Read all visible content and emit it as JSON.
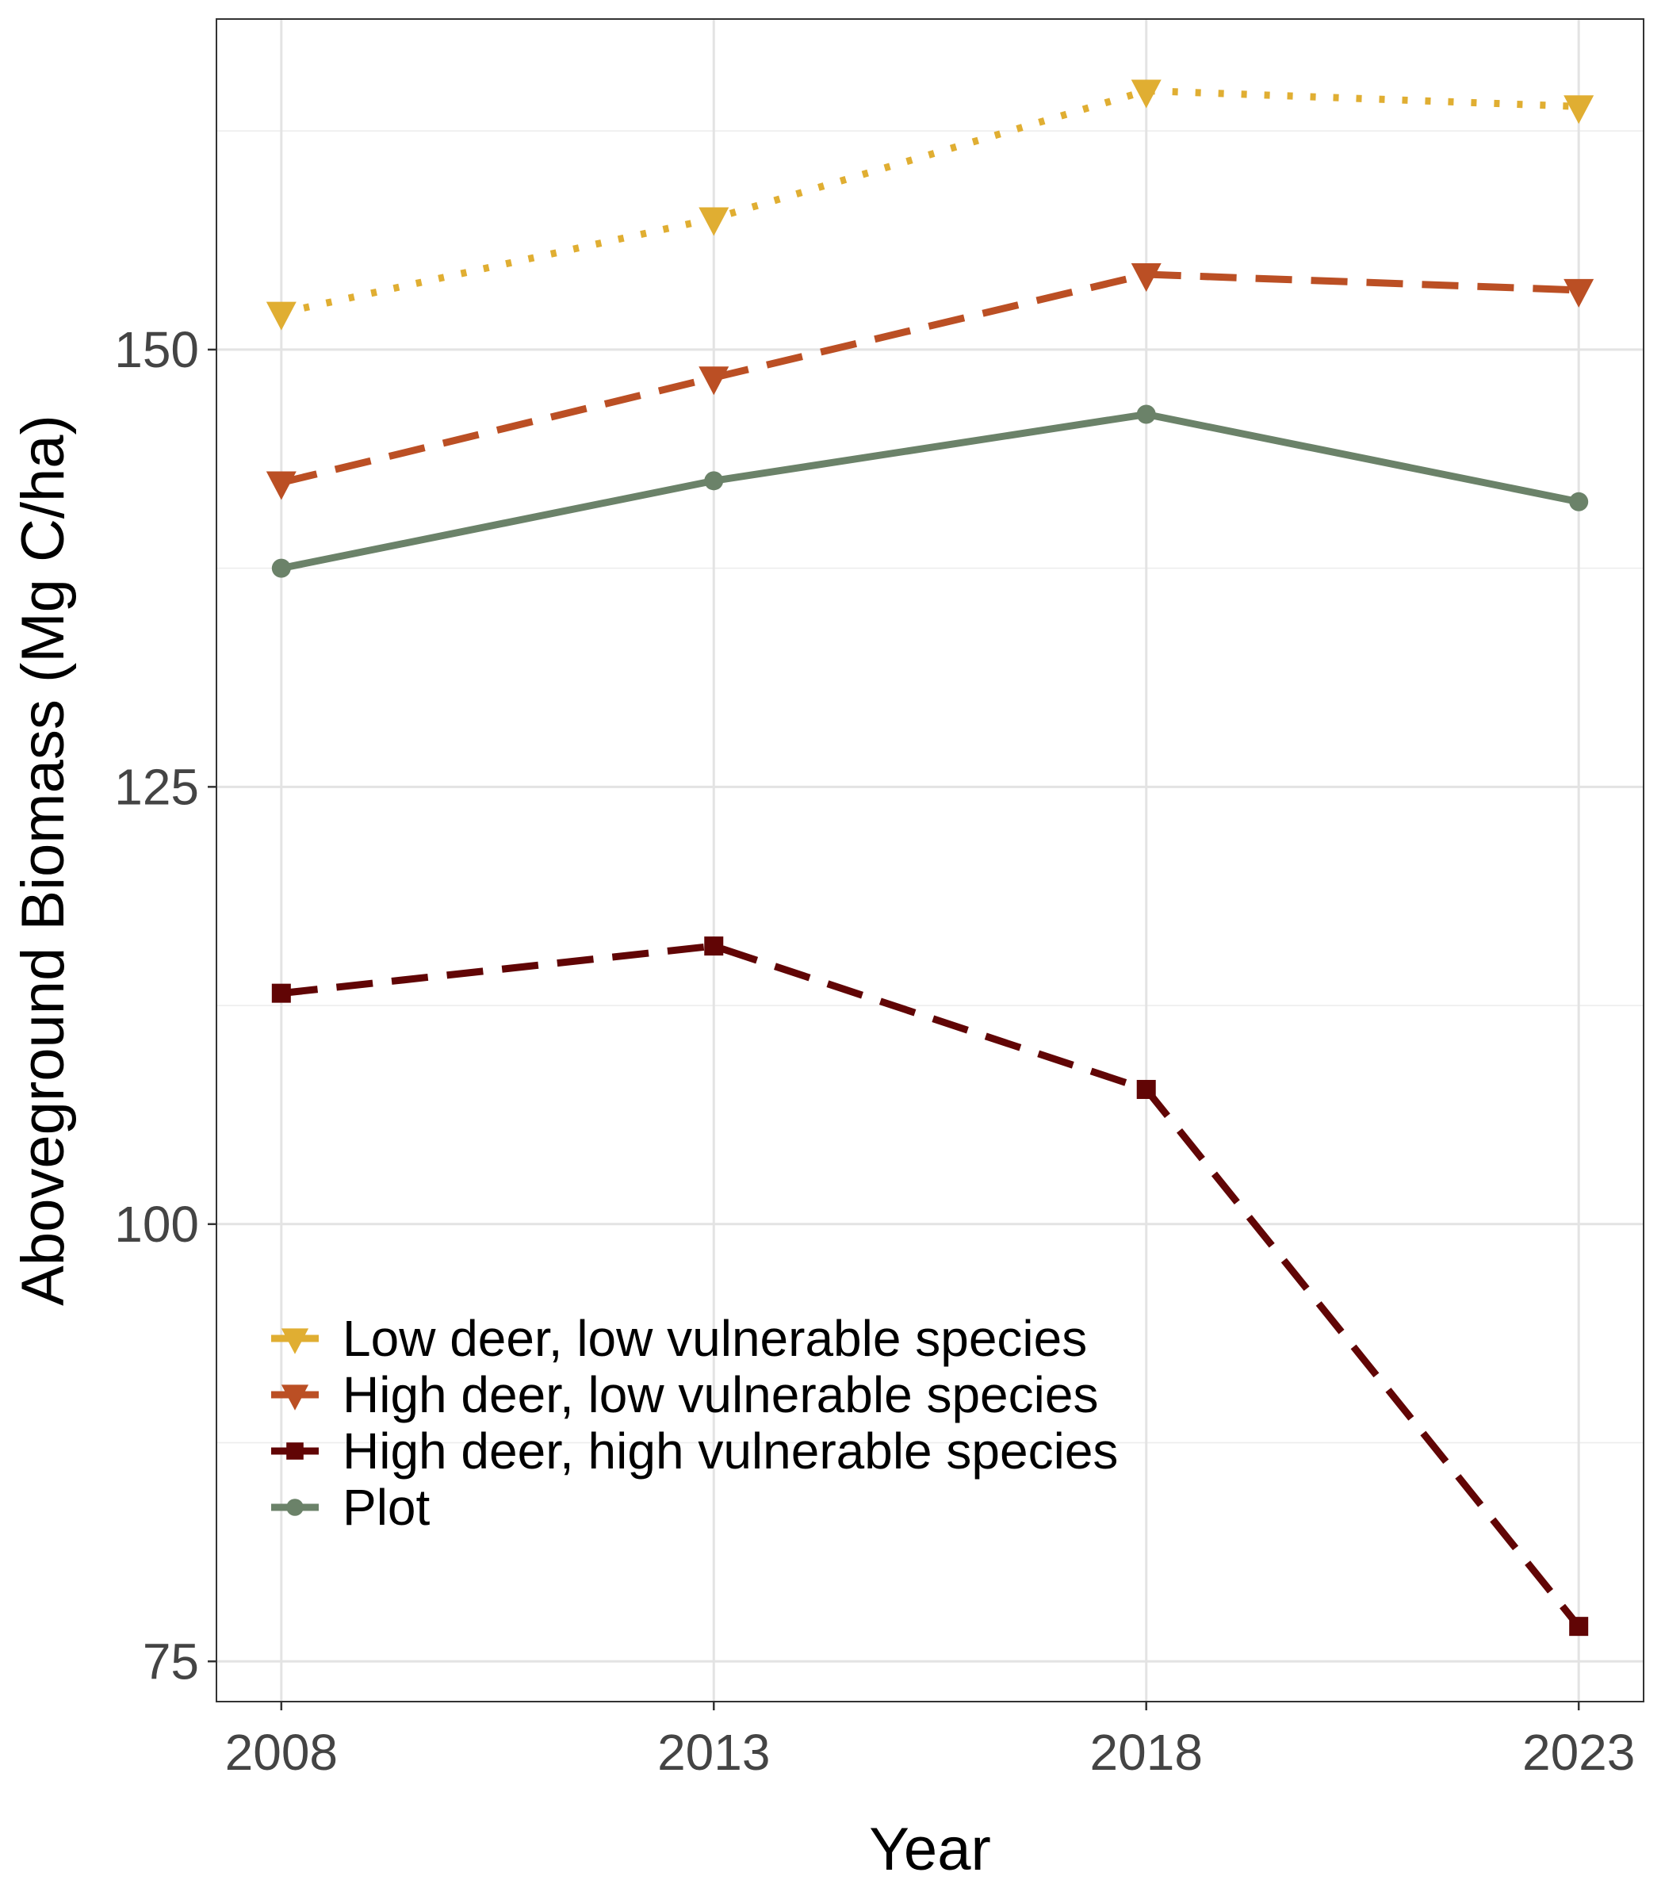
{
  "chart_data": {
    "type": "line",
    "title": "",
    "xlabel": "Year",
    "ylabel": "Aboveground Biomass (Mg C/ha)",
    "x": [
      2008,
      2013,
      2018,
      2023
    ],
    "x_tick_labels": [
      "2008",
      "2013",
      "2018",
      "2023"
    ],
    "y_ticks": [
      75,
      100,
      125,
      150
    ],
    "y_tick_labels": [
      "75",
      "100",
      "125",
      "150"
    ],
    "xlim": [
      2007.25,
      2023.75
    ],
    "ylim": [
      72.7,
      168.9
    ],
    "grid": true,
    "legend_position": "bottom-left",
    "series": [
      {
        "name": "Low deer, low vulnerable species",
        "values": [
          152.1,
          157.5,
          164.8,
          163.9
        ],
        "color": "#E0AE32",
        "dash": "dotted",
        "marker": "triangle-down"
      },
      {
        "name": "High deer, low vulnerable species",
        "values": [
          142.4,
          148.4,
          154.3,
          153.4
        ],
        "color": "#BB4F24",
        "dash": "dashed",
        "marker": "triangle-down"
      },
      {
        "name": "High deer, high vulnerable species",
        "values": [
          113.2,
          115.9,
          107.7,
          77.0
        ],
        "color": "#610505",
        "dash": "dashed",
        "marker": "square"
      },
      {
        "name": "Plot",
        "values": [
          137.5,
          142.5,
          146.3,
          141.3
        ],
        "color": "#6B8269",
        "dash": "solid",
        "marker": "circle"
      }
    ]
  }
}
